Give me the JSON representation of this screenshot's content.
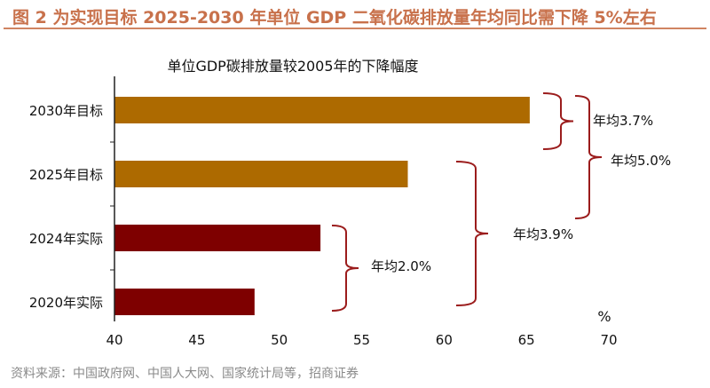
{
  "title": "图 2 为实现目标 2025-2030 年单位 GDP 二氧化碳排放量年均同比需下降 5%左右",
  "source": "资料来源：中国政府网、中国人大网、国家统计局等，招商证券",
  "colors": {
    "target": "#ad6a00",
    "actual": "#7e0000",
    "bracket": "#9b1c1c",
    "title": "#c8714b"
  },
  "chart_data": {
    "type": "bar",
    "orientation": "horizontal",
    "title": "单位GDP碳排放量较2005年的下降幅度",
    "unit_label": "%",
    "categories": [
      "2030年目标",
      "2025年目标",
      "2024年实际",
      "2020年实际"
    ],
    "values": [
      65.2,
      57.8,
      52.5,
      48.5
    ],
    "bar_types": [
      "target",
      "target",
      "actual",
      "actual"
    ],
    "xlim": [
      40,
      70
    ],
    "xticks": [
      "40",
      "45",
      "50",
      "55",
      "60",
      "65",
      "70"
    ],
    "grid": false,
    "annotations": [
      {
        "from": "2025年目标",
        "to": "2030年目标",
        "label": "年均3.7%"
      },
      {
        "from": "2024年实际",
        "to": "2030年目标",
        "label": "年均5.0%"
      },
      {
        "from": "2020年实际",
        "to": "2025年目标",
        "label": "年均3.9%"
      },
      {
        "from": "2020年实际",
        "to": "2024年实际",
        "label": "年均2.0%"
      }
    ]
  }
}
